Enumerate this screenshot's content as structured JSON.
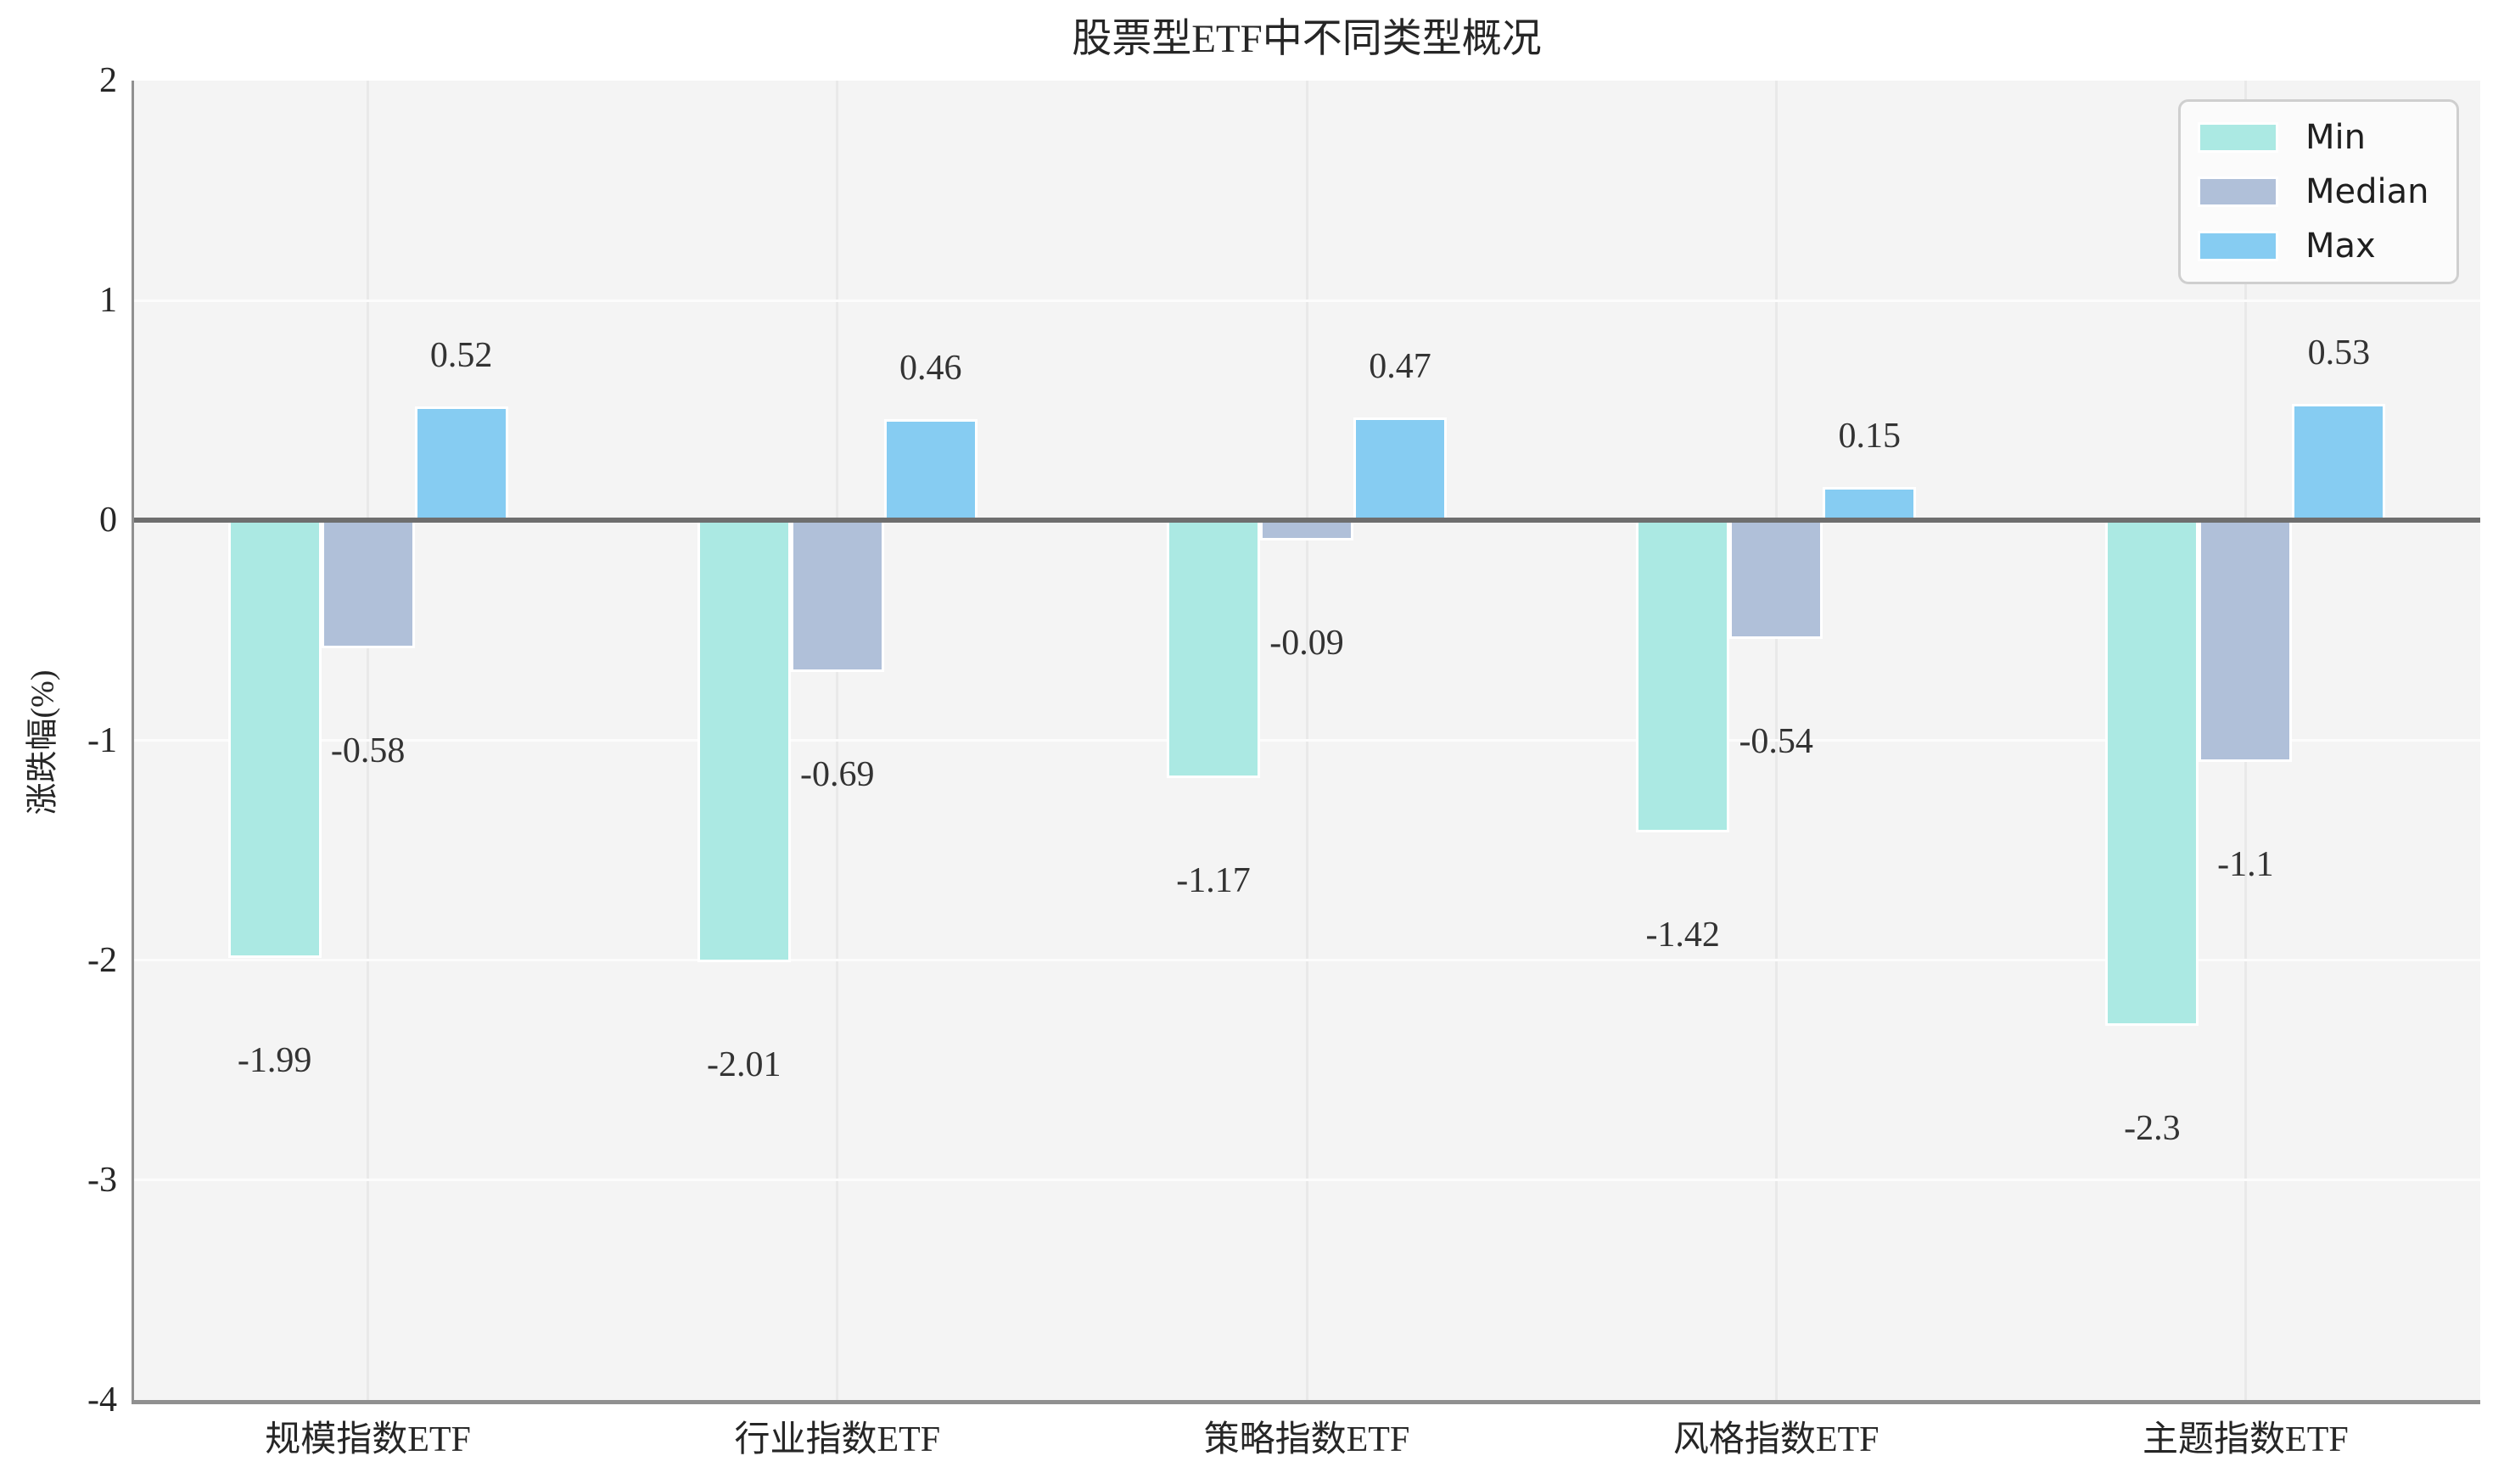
{
  "chart": {
    "title": "股票型ETF中不同类型概况",
    "ylabel": "涨跌幅(%)",
    "yticks": [
      "2",
      "1",
      "0",
      "-1",
      "-2",
      "-3",
      "-4"
    ],
    "ytick_values": [
      2,
      1,
      0,
      -1,
      -2,
      -3,
      -4
    ]
  },
  "legend": {
    "items": [
      {
        "label": "Min",
        "color": "#abe9e3"
      },
      {
        "label": "Median",
        "color": "#b0c0d9"
      },
      {
        "label": "Max",
        "color": "#86ccf2"
      }
    ]
  },
  "chart_data": {
    "type": "bar",
    "title": "股票型ETF中不同类型概况",
    "xlabel": "",
    "ylabel": "涨跌幅(%)",
    "ylim": [
      -4,
      2
    ],
    "grid": true,
    "legend_position": "upper right",
    "categories": [
      "规模指数ETF",
      "行业指数ETF",
      "策略指数ETF",
      "风格指数ETF",
      "主题指数ETF"
    ],
    "series": [
      {
        "name": "Min",
        "color": "#abe9e3",
        "values": [
          -1.99,
          -2.01,
          -1.17,
          -1.42,
          -2.3
        ]
      },
      {
        "name": "Median",
        "color": "#b0c0d9",
        "values": [
          -0.58,
          -0.69,
          -0.09,
          -0.54,
          -1.1
        ]
      },
      {
        "name": "Max",
        "color": "#86ccf2",
        "values": [
          0.52,
          0.46,
          0.47,
          0.15,
          0.53
        ]
      }
    ],
    "value_labels": [
      [
        "-1.99",
        "-2.01",
        "-1.17",
        "-1.42",
        "-2.3"
      ],
      [
        "-0.58",
        "-0.69",
        "-0.09",
        "-0.54",
        "-1.1"
      ],
      [
        "0.52",
        "0.46",
        "0.47",
        "0.15",
        "0.53"
      ]
    ]
  },
  "colors": {
    "plot_bg": "#f4f4f4",
    "h_grid": "#fcfcfc",
    "v_grid": "#e9e9e9",
    "zero_line": "#6e6e6e",
    "spine": "#909090"
  }
}
